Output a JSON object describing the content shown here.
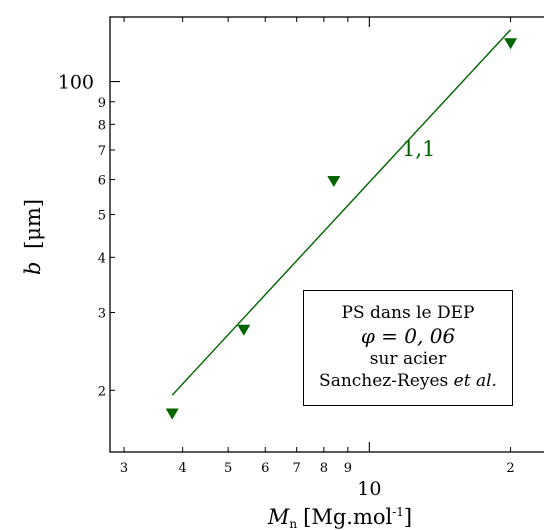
{
  "chart_data": {
    "type": "scatter",
    "xscale": "log",
    "yscale": "log",
    "xlim": [
      2.8,
      25
    ],
    "ylim": [
      14.5,
      140
    ],
    "xlabel": "M",
    "xlabel_sub": "n",
    "xlabel_unit": "[Mg.mol",
    "xlabel_sup": "-1",
    "xlabel_close": "]",
    "ylabel": "b",
    "ylabel_unit": "[μm]",
    "x_major_ticks": [
      10
    ],
    "x_major_labels": [
      "10"
    ],
    "x_minor_ticks": [
      3,
      4,
      5,
      6,
      7,
      8,
      9,
      20
    ],
    "x_minor_labels": [
      "3",
      "4",
      "5",
      "6",
      "7",
      "8",
      "9",
      "2"
    ],
    "y_major_ticks": [
      100
    ],
    "y_major_labels": [
      "100"
    ],
    "y_minor_ticks": [
      20,
      30,
      40,
      50,
      60,
      70,
      80,
      90
    ],
    "y_minor_labels": [
      "2",
      "3",
      "4",
      "5",
      "6",
      "7",
      "8",
      "9"
    ],
    "series": [
      {
        "marker": "triangle-down",
        "color": "#006400",
        "points": [
          {
            "x": 3.8,
            "y": 17.7
          },
          {
            "x": 5.4,
            "y": 27.4
          },
          {
            "x": 8.4,
            "y": 59.5
          },
          {
            "x": 20.0,
            "y": 122
          }
        ]
      }
    ],
    "fit_line": {
      "color": "#006400",
      "x": [
        3.8,
        20.0
      ],
      "y": [
        19.5,
        131
      ],
      "label": "1,1"
    },
    "legend": {
      "position": "bottom-right",
      "line1": "PS dans le DEP",
      "line2": "φ = 0, 06",
      "line3": "sur acier",
      "line4_plain": "Sanchez-Reyes ",
      "line4_italic": "et al."
    }
  }
}
